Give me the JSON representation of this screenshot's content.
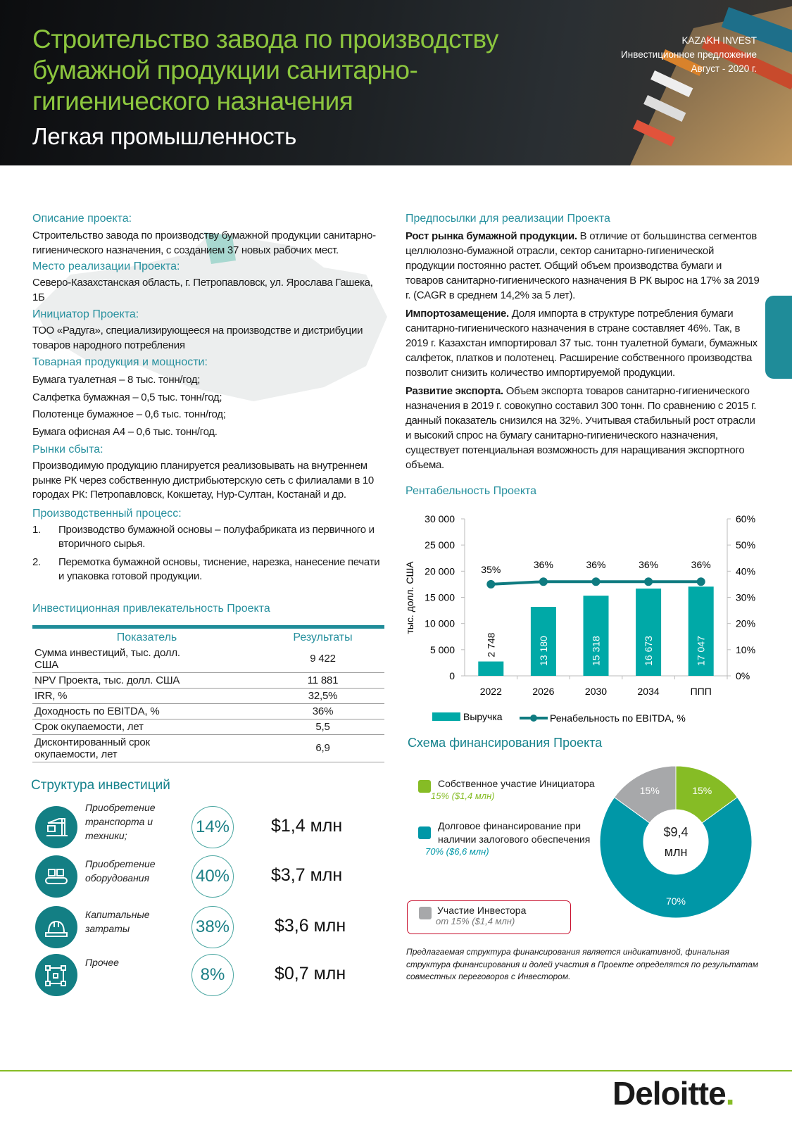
{
  "header": {
    "title": "Строительство завода по производству бумажной продукции санитарно-гигиенического назначения",
    "subtitle": "Легкая промышленность",
    "org": "KAZAKH INVEST",
    "doc_type": "Инвестиционное предложение",
    "date": "Август - 2020 г."
  },
  "left": {
    "description": {
      "title": "Описание проекта:",
      "text": "Строительство завода по производству бумажной продукции санитарно-гигиенического назначения, с созданием 37 новых рабочих мест."
    },
    "location": {
      "title": "Место реализации Проекта:",
      "text": "Северо-Казахстанская область, г. Петропавловск, ул. Ярослава Гашека, 1Б"
    },
    "initiator": {
      "title": "Инициатор Проекта:",
      "text": "ТОО «Радуга», специализирующееся на производстве и дистрибуции товаров народного потребления"
    },
    "products": {
      "title": "Товарная продукция и мощности:",
      "items": [
        "Бумага туалетная – 8 тыс. тонн/год;",
        "Салфетка бумажная – 0,5 тыс. тонн/год;",
        "Полотенце бумажное – 0,6 тыс. тонн/год;",
        "Бумага офисная А4 – 0,6 тыс. тонн/год."
      ]
    },
    "markets": {
      "title": "Рынки сбыта:",
      "text": "Производимую продукцию планируется реализовывать на внутреннем рынке РК через собственную дистрибьютерскую сеть с филиалами в 10 городах РК: Петропавловск, Кокшетау, Нур-Султан, Костанай и др."
    },
    "process": {
      "title": "Производственный процесс:",
      "items": [
        {
          "n": "1.",
          "text": "Производство бумажной основы – полуфабриката из первичного и вторичного сырья."
        },
        {
          "n": "2.",
          "text": "Перемотка бумажной основы, тиснение, нарезка, нанесение печати и упаковка готовой продукции."
        }
      ]
    },
    "attractiveness": {
      "title": "Инвестиционная привлекательность Проекта",
      "col1": "Показатель",
      "col2": "Результаты",
      "rows": [
        {
          "k": "Сумма инвестиций, тыс. долл. США",
          "v": "9 422"
        },
        {
          "k": "NPV Проекта, тыс. долл. США",
          "v": "11 881"
        },
        {
          "k": "IRR, %",
          "v": "32,5%"
        },
        {
          "k": "Доходность по EBITDA, %",
          "v": "36%"
        },
        {
          "k": "Срок окупаемости, лет",
          "v": "5,5"
        },
        {
          "k": "Дисконтированный срок окупаемости, лет",
          "v": "6,9"
        }
      ]
    },
    "structure": {
      "title": "Структура инвестиций",
      "items": [
        {
          "icon": "crane-icon",
          "label": "Приобретение транспорта и техники;",
          "pct": "14%",
          "amount": "$1,4 млн"
        },
        {
          "icon": "conveyor-icon",
          "label": "Приобретение оборудования",
          "pct": "40%",
          "amount": "$3,7 млн"
        },
        {
          "icon": "hard-hat-icon",
          "label": "Капитальные затраты",
          "pct": "38%",
          "amount": "$3,6 млн"
        },
        {
          "icon": "network-icon",
          "label": "Прочее",
          "pct": "8%",
          "amount": "$0,7 млн"
        }
      ]
    }
  },
  "right": {
    "prereq": {
      "title": "Предпосылки для реализации Проекта",
      "paras": [
        {
          "bold": "Рост рынка бумажной продукции.",
          "text": " В отличие от большинства сегментов целлюлозно-бумажной отрасли, сектор санитарно-гигиенической продукции постоянно растет. Общий объем производства бумаги и товаров санитарно-гигиенического назначения В РК вырос на 17% за 2019 г. (CAGR в среднем 14,2% за 5 лет)."
        },
        {
          "bold": "Импортозамещение.",
          "text": " Доля импорта в структуре потребления бумаги санитарно-гигиенического назначения в стране составляет 46%. Так, в 2019 г. Казахстан импортировал 37 тыс. тонн туалетной бумаги, бумажных салфеток, платков и полотенец. Расширение собственного производства позволит снизить количество импортируемой продукции."
        },
        {
          "bold": "Развитие экспорта.",
          "text": " Объем экспорта товаров санитарно-гигиенического назначения в 2019 г. совокупно составил 300 тонн. По сравнению с 2015 г. данный показатель снизился на 32%. Учитывая стабильный рост отрасли и высокий спрос на бумагу санитарно-гигиенического назначения, существует потенциальная возможность для наращивания экспортного объема."
        }
      ]
    },
    "profit_title": "Рентабельность Проекта",
    "financing": {
      "title": "Схема финансирования Проекта",
      "items": [
        {
          "label": "Собственное участие Инициатора",
          "sub": "15% ($1,4 млн)"
        },
        {
          "label": "Долговое финансирование при наличии залогового обеспечения",
          "sub": "70% ($6,6 млн)"
        },
        {
          "label": "Участие Инвестора",
          "sub": "от 15% ($1,4 млн)"
        }
      ],
      "center_value": "$9,4",
      "center_unit": "млн",
      "note": "Предлагаемая структура финансирования является индикативной, финальная структура финансирования и долей участия в Проекте определятся по результатам совместных переговоров с Инвестором."
    }
  },
  "footer": {
    "logo": "Deloitte"
  },
  "chart_data": [
    {
      "type": "bar+line",
      "title": "Рентабельность Проекта",
      "categories": [
        "2022",
        "2026",
        "2030",
        "2034",
        "ППП"
      ],
      "series": [
        {
          "name": "Выручка",
          "type": "bar",
          "axis": "left",
          "values": [
            2748,
            13180,
            15318,
            16673,
            17047
          ],
          "labels": [
            "2 748",
            "13 180",
            "15 318",
            "16 673",
            "17 047"
          ],
          "color": "#00a9a7"
        },
        {
          "name": "Ренабельность по EBITDA, %",
          "type": "line",
          "axis": "right",
          "values": [
            35,
            36,
            36,
            36,
            36
          ],
          "labels": [
            "35%",
            "36%",
            "36%",
            "36%",
            "36%"
          ],
          "color": "#0f7b80"
        }
      ],
      "ylabel": "тыс. долл. США",
      "ylim": [
        0,
        30000
      ],
      "yticks": [
        "0",
        "5 000",
        "10 000",
        "15 000",
        "20 000",
        "25 000",
        "30 000"
      ],
      "y2lim": [
        0,
        60
      ],
      "y2ticks": [
        "0%",
        "10%",
        "20%",
        "30%",
        "40%",
        "50%",
        "60%"
      ],
      "legend": "bottom",
      "grid": false
    },
    {
      "type": "pie",
      "title": "Схема финансирования Проекта",
      "labels": [
        "Собственное участие Инициатора",
        "Долговое финансирование",
        "Участие Инвестора"
      ],
      "values": [
        15,
        70,
        15
      ],
      "value_labels": [
        "15%",
        "70%",
        "15%"
      ],
      "colors": [
        "#86bc25",
        "#0097a7",
        "#a7a8aa"
      ]
    }
  ]
}
